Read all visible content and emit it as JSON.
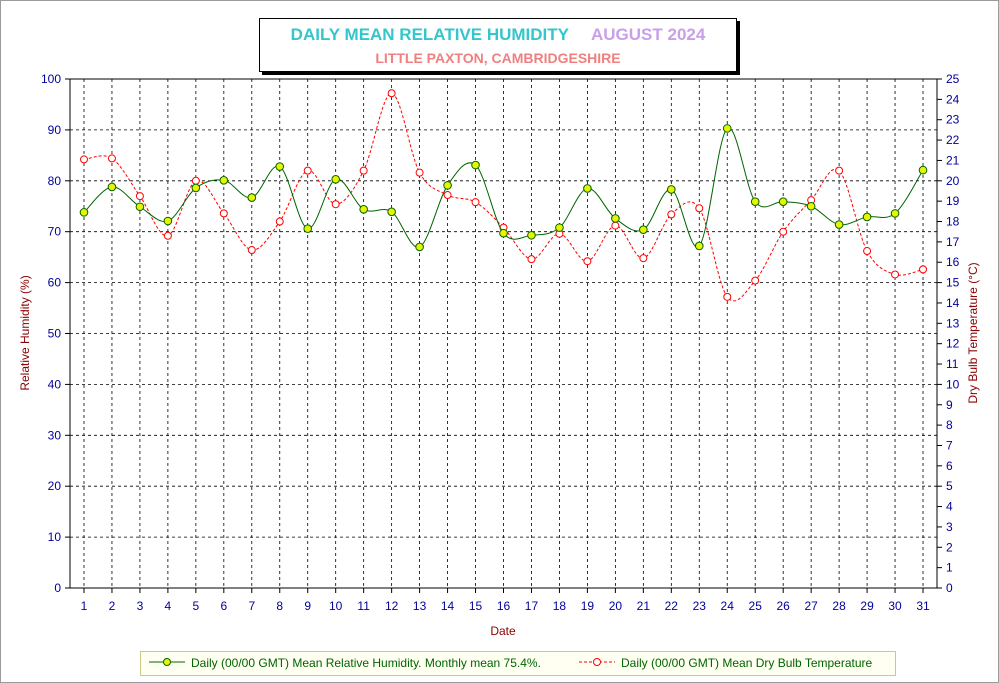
{
  "title": {
    "main": "DAILY MEAN RELATIVE HUMIDITY",
    "period": "AUGUST 2024",
    "subtitle": "LITTLE PAXTON, CAMBRIDGESHIRE"
  },
  "colors": {
    "humidity_line": "#006400",
    "humidity_marker": "#e8f400",
    "temperature_line": "#ff0000",
    "tick_labels": "#00009c",
    "axis_titles": "#8b0000"
  },
  "chart_data": {
    "type": "line",
    "xlabel": "Date",
    "ylabel": "Relative Humidity (%)",
    "y2label": "Dry Bulb Temperature (°C)",
    "x": [
      1,
      2,
      3,
      4,
      5,
      6,
      7,
      8,
      9,
      10,
      11,
      12,
      13,
      14,
      15,
      16,
      17,
      18,
      19,
      20,
      21,
      22,
      23,
      24,
      25,
      26,
      27,
      28,
      29,
      30,
      31
    ],
    "xlim": [
      0.5,
      31.5
    ],
    "ylim": [
      0,
      100
    ],
    "y2lim": [
      0,
      25
    ],
    "yticks": [
      0,
      10,
      20,
      30,
      40,
      50,
      60,
      70,
      80,
      90,
      100
    ],
    "y2ticks": [
      0,
      1,
      2,
      3,
      4,
      5,
      6,
      7,
      8,
      9,
      10,
      11,
      12,
      13,
      14,
      15,
      16,
      17,
      18,
      19,
      20,
      21,
      22,
      23,
      24,
      25
    ],
    "grid": true,
    "legend_position": "bottom",
    "series": [
      {
        "name": "Daily (00/00 GMT) Mean Relative Humidity. Monthly mean 75.4%.",
        "axis": "left",
        "values": [
          73.8,
          78.8,
          74.9,
          72.1,
          78.6,
          80.1,
          76.7,
          82.8,
          70.6,
          80.3,
          74.4,
          73.9,
          67.0,
          79.1,
          83.1,
          69.7,
          69.3,
          70.8,
          78.5,
          72.6,
          70.4,
          78.3,
          67.2,
          90.3,
          75.9,
          75.9,
          75.0,
          71.4,
          72.9,
          73.6,
          82.1
        ]
      },
      {
        "name": "Daily (00/00 GMT) Mean Dry Bulb Temperature",
        "axis": "right",
        "values": [
          21.05,
          21.1,
          19.25,
          17.3,
          20.0,
          18.4,
          16.6,
          18.0,
          20.5,
          18.85,
          20.5,
          24.3,
          20.4,
          19.3,
          18.95,
          17.7,
          16.15,
          17.4,
          16.05,
          17.8,
          16.2,
          18.35,
          18.65,
          14.3,
          15.1,
          17.5,
          19.05,
          20.5,
          16.55,
          15.4,
          15.65
        ]
      }
    ]
  }
}
